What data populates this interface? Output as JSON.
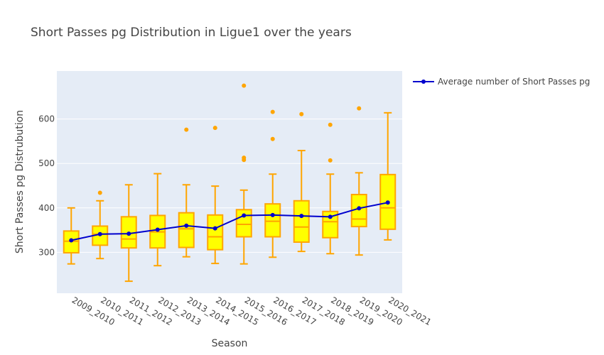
{
  "chart_data": {
    "type": "box",
    "title": "Short Passes pg Distribution in Ligue1 over the years",
    "xlabel": "Season",
    "ylabel": "Short Passes pg Distrubution",
    "ylim": [
      208,
      708
    ],
    "yticks": [
      300,
      400,
      500,
      600
    ],
    "categories": [
      "2009_2010",
      "2010_2011",
      "2011_2012",
      "2012_2013",
      "2013_2014",
      "2014_2015",
      "2015_2016",
      "2016_2017",
      "2017_2018",
      "2018_2019",
      "2019_2020",
      "2020_2021"
    ],
    "boxes": [
      {
        "min": 274,
        "q1": 299,
        "median": 325,
        "q3": 348,
        "max": 400,
        "outliers": []
      },
      {
        "min": 286,
        "q1": 316,
        "median": 341,
        "q3": 359,
        "max": 416,
        "outliers": [
          434
        ]
      },
      {
        "min": 235,
        "q1": 310,
        "median": 330,
        "q3": 380,
        "max": 452,
        "outliers": []
      },
      {
        "min": 270,
        "q1": 310,
        "median": 346,
        "q3": 383,
        "max": 477,
        "outliers": []
      },
      {
        "min": 290,
        "q1": 311,
        "median": 353,
        "q3": 389,
        "max": 452,
        "outliers": [
          576
        ]
      },
      {
        "min": 275,
        "q1": 306,
        "median": 335,
        "q3": 384,
        "max": 449,
        "outliers": [
          580
        ]
      },
      {
        "min": 274,
        "q1": 335,
        "median": 363,
        "q3": 396,
        "max": 440,
        "outliers": [
          508,
          513,
          675
        ]
      },
      {
        "min": 289,
        "q1": 335,
        "median": 370,
        "q3": 409,
        "max": 476,
        "outliers": [
          555,
          616
        ]
      },
      {
        "min": 302,
        "q1": 323,
        "median": 357,
        "q3": 416,
        "max": 529,
        "outliers": [
          611
        ]
      },
      {
        "min": 297,
        "q1": 333,
        "median": 369,
        "q3": 392,
        "max": 476,
        "outliers": [
          507,
          587
        ]
      },
      {
        "min": 294,
        "q1": 358,
        "median": 375,
        "q3": 430,
        "max": 479,
        "outliers": [
          624
        ]
      },
      {
        "min": 328,
        "q1": 352,
        "median": 400,
        "q3": 475,
        "max": 614,
        "outliers": []
      }
    ],
    "series": [
      {
        "name": "Average number of Short Passes pg",
        "values": [
          327,
          341,
          342,
          351,
          360,
          354,
          383,
          384,
          382,
          380,
          399,
          412
        ]
      }
    ],
    "legend_position": "top-right",
    "colors": {
      "plot_bg": "#e5ecf6",
      "grid": "#ffffff",
      "box_fill": "#ffff00",
      "box_line": "#ffa500",
      "avg_line": "#0000cd"
    }
  }
}
